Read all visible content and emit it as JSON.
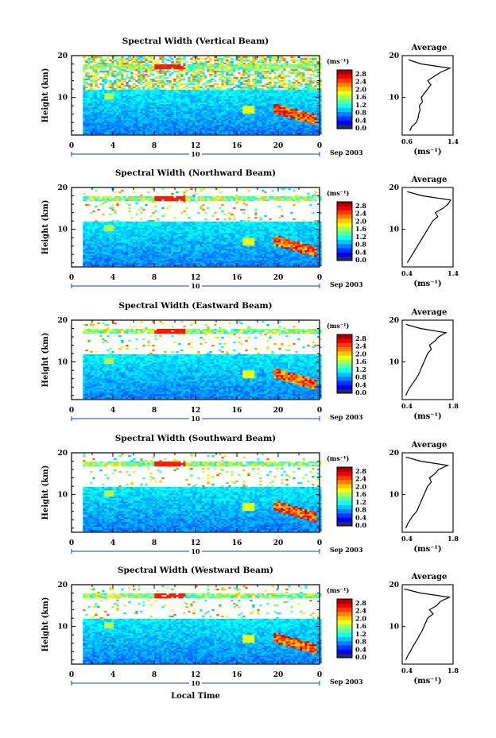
{
  "figure": {
    "xlabel": "Local Time",
    "date_label": "Sep 2003",
    "day_label": "10",
    "ylabel": "Height (km)",
    "colorbar_unit": "(ms⁻¹)",
    "avg_title": "Average",
    "avg_xlabel": "(ms⁻¹)",
    "colorbar_ticks": [
      "0.0",
      "0.4",
      "0.8",
      "1.2",
      "1.6",
      "2.0",
      "2.4",
      "2.8"
    ],
    "x_ticks": [
      "0",
      "4",
      "8",
      "12",
      "16",
      "20",
      "0"
    ],
    "y_ticks": [
      "20",
      "10"
    ]
  },
  "chart_data": [
    {
      "type": "heatmap",
      "title": "Spectral Width (Vertical Beam)",
      "xlabel": "Local Time",
      "ylabel": "Height (km)",
      "xlim": [
        0,
        24
      ],
      "ylim": [
        1,
        20
      ],
      "colorbar": {
        "label": "(ms⁻¹)",
        "range": [
          0.0,
          2.8
        ]
      },
      "average_profile": {
        "title": "Average",
        "xlabel": "(ms⁻¹)",
        "xlim": [
          0.6,
          1.4
        ],
        "xticks": [
          "0.6",
          "1.4"
        ],
        "height": [
          2,
          3,
          4,
          5,
          6,
          7,
          8,
          9,
          10,
          11,
          12,
          13,
          14,
          15,
          16,
          17,
          18,
          19
        ],
        "value": [
          0.72,
          0.75,
          0.82,
          0.85,
          0.86,
          0.88,
          0.87,
          0.92,
          0.9,
          0.95,
          1.0,
          1.05,
          1.0,
          1.1,
          1.2,
          1.35,
          0.9,
          0.7
        ]
      }
    },
    {
      "type": "heatmap",
      "title": "Spectral Width (Northward Beam)",
      "xlabel": "Local Time",
      "ylabel": "Height (km)",
      "xlim": [
        0,
        24
      ],
      "ylim": [
        1,
        20
      ],
      "colorbar": {
        "label": "(ms⁻¹)",
        "range": [
          0.0,
          2.8
        ]
      },
      "average_profile": {
        "title": "Average",
        "xlabel": "(ms⁻¹)",
        "xlim": [
          0.4,
          1.4
        ],
        "xticks": [
          "0.4",
          "1.4"
        ],
        "height": [
          2,
          3,
          4,
          5,
          6,
          7,
          8,
          9,
          10,
          11,
          12,
          13,
          14,
          15,
          16,
          17,
          18,
          19
        ],
        "value": [
          0.5,
          0.55,
          0.6,
          0.65,
          0.7,
          0.75,
          0.8,
          0.85,
          0.9,
          0.95,
          1.0,
          1.1,
          1.05,
          1.2,
          1.3,
          1.35,
          0.8,
          0.5
        ]
      }
    },
    {
      "type": "heatmap",
      "title": "Spectral Width (Eastward Beam)",
      "xlabel": "Local Time",
      "ylabel": "Height (km)",
      "xlim": [
        0,
        24
      ],
      "ylim": [
        1,
        20
      ],
      "colorbar": {
        "label": "(ms⁻¹)",
        "range": [
          0.0,
          2.8
        ]
      },
      "average_profile": {
        "title": "Average",
        "xlabel": "(ms⁻¹)",
        "xlim": [
          0.4,
          1.8
        ],
        "xticks": [
          "0.4",
          "1.8"
        ],
        "height": [
          2,
          3,
          4,
          5,
          6,
          7,
          8,
          9,
          10,
          11,
          12,
          13,
          14,
          15,
          16,
          17,
          18,
          19
        ],
        "value": [
          0.5,
          0.55,
          0.62,
          0.7,
          0.78,
          0.85,
          0.9,
          0.95,
          1.0,
          1.05,
          1.1,
          1.2,
          1.15,
          1.3,
          1.4,
          1.6,
          0.9,
          0.5
        ]
      }
    },
    {
      "type": "heatmap",
      "title": "Spectral Width (Southward Beam)",
      "xlabel": "Local Time",
      "ylabel": "Height (km)",
      "xlim": [
        0,
        24
      ],
      "ylim": [
        1,
        20
      ],
      "colorbar": {
        "label": "(ms⁻¹)",
        "range": [
          0.0,
          2.8
        ]
      },
      "average_profile": {
        "title": "Average",
        "xlabel": "(ms⁻¹)",
        "xlim": [
          0.4,
          1.8
        ],
        "xticks": [
          "0.4",
          "1.8"
        ],
        "height": [
          2,
          3,
          4,
          5,
          6,
          7,
          8,
          9,
          10,
          11,
          12,
          13,
          14,
          15,
          16,
          17,
          18,
          19
        ],
        "value": [
          0.5,
          0.55,
          0.62,
          0.7,
          0.8,
          0.85,
          0.9,
          0.95,
          1.0,
          1.05,
          1.1,
          1.2,
          1.15,
          1.3,
          1.4,
          1.65,
          0.9,
          0.5
        ]
      }
    },
    {
      "type": "heatmap",
      "title": "Spectral Width (Westward Beam)",
      "xlabel": "Local Time",
      "ylabel": "Height (km)",
      "xlim": [
        0,
        24
      ],
      "ylim": [
        1,
        20
      ],
      "colorbar": {
        "label": "(ms⁻¹)",
        "range": [
          0.0,
          2.8
        ]
      },
      "average_profile": {
        "title": "Average",
        "xlabel": "(ms⁻¹)",
        "xlim": [
          0.4,
          1.8
        ],
        "xticks": [
          "0.4",
          "1.8"
        ],
        "height": [
          2,
          3,
          4,
          5,
          6,
          7,
          8,
          9,
          10,
          11,
          12,
          13,
          14,
          15,
          16,
          17,
          18,
          19
        ],
        "value": [
          0.5,
          0.55,
          0.62,
          0.68,
          0.75,
          0.82,
          0.88,
          0.95,
          1.0,
          1.05,
          1.1,
          1.25,
          1.15,
          1.35,
          1.45,
          1.7,
          0.9,
          0.45
        ]
      }
    }
  ]
}
